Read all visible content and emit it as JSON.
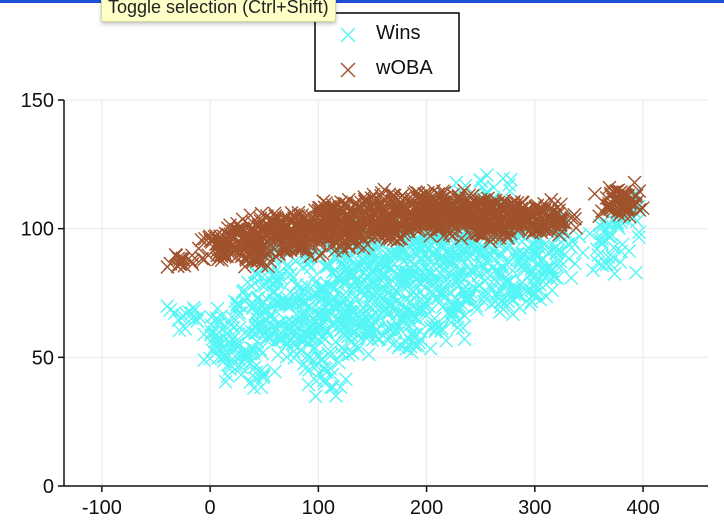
{
  "tooltip": {
    "text": "Toggle selection (Ctrl+Shift)"
  },
  "colors": {
    "wins": "#55f5f5",
    "woba": "#a0522d",
    "axis": "#111111",
    "grid": "#ebebeb",
    "accent": "#1f4fd6"
  },
  "chart_data": {
    "type": "scatter",
    "title": "",
    "xlabel": "",
    "ylabel": "",
    "xlim": [
      -135,
      460
    ],
    "ylim": [
      0,
      150
    ],
    "xticks": [
      -100,
      0,
      100,
      200,
      300,
      400
    ],
    "yticks": [
      0,
      50,
      100,
      150
    ],
    "grid": true,
    "legend": "top-center",
    "series": [
      {
        "name": "Wins",
        "marker": "x",
        "color": "#55f5f5",
        "points": [
          [
            -25,
            66
          ],
          [
            5,
            58
          ],
          [
            8,
            50
          ],
          [
            20,
            63
          ],
          [
            25,
            55
          ],
          [
            28,
            70
          ],
          [
            35,
            52
          ],
          [
            42,
            44
          ],
          [
            45,
            60
          ],
          [
            48,
            78
          ],
          [
            55,
            66
          ],
          [
            60,
            85
          ],
          [
            65,
            57
          ],
          [
            70,
            72
          ],
          [
            75,
            80
          ],
          [
            78,
            55
          ],
          [
            85,
            63
          ],
          [
            88,
            90
          ],
          [
            92,
            70
          ],
          [
            96,
            58
          ],
          [
            100,
            50
          ],
          [
            104,
            76
          ],
          [
            106,
            40
          ],
          [
            110,
            68
          ],
          [
            115,
            84
          ],
          [
            118,
            62
          ],
          [
            122,
            92
          ],
          [
            125,
            73
          ],
          [
            130,
            56
          ],
          [
            135,
            80
          ],
          [
            138,
            66
          ],
          [
            142,
            88
          ],
          [
            145,
            60
          ],
          [
            150,
            75
          ],
          [
            155,
            95
          ],
          [
            158,
            69
          ],
          [
            162,
            82
          ],
          [
            165,
            58
          ],
          [
            170,
            90
          ],
          [
            175,
            71
          ],
          [
            178,
            64
          ],
          [
            182,
            86
          ],
          [
            186,
            56
          ],
          [
            190,
            78
          ],
          [
            195,
            93
          ],
          [
            198,
            70
          ],
          [
            202,
            84
          ],
          [
            206,
            62
          ],
          [
            210,
            96
          ],
          [
            214,
            75
          ],
          [
            218,
            88
          ],
          [
            222,
            66
          ],
          [
            226,
            108
          ],
          [
            230,
            80
          ],
          [
            234,
            92
          ],
          [
            238,
            72
          ],
          [
            242,
            100
          ],
          [
            246,
            84
          ],
          [
            250,
            110
          ],
          [
            254,
            76
          ],
          [
            258,
            95
          ],
          [
            262,
            116
          ],
          [
            266,
            82
          ],
          [
            270,
            90
          ],
          [
            275,
            72
          ],
          [
            280,
            100
          ],
          [
            285,
            74
          ],
          [
            290,
            86
          ],
          [
            295,
            92
          ],
          [
            300,
            78
          ],
          [
            305,
            96
          ],
          [
            310,
            84
          ],
          [
            318,
            102
          ],
          [
            325,
            91
          ],
          [
            370,
            98
          ],
          [
            372,
            89
          ],
          [
            380,
            104
          ],
          [
            385,
            108
          ],
          [
            60,
            95
          ],
          [
            140,
            102
          ],
          [
            180,
            99
          ],
          [
            120,
            68
          ],
          [
            95,
            74
          ],
          [
            165,
            79
          ],
          [
            205,
            90
          ],
          [
            235,
            97
          ],
          [
            72,
            62
          ],
          [
            130,
            61
          ],
          [
            250,
            102
          ],
          [
            150,
            88
          ]
        ]
      },
      {
        "name": "wOBA",
        "marker": "x",
        "color": "#a0522d",
        "points": [
          [
            -25,
            88
          ],
          [
            2,
            95
          ],
          [
            10,
            90
          ],
          [
            18,
            97
          ],
          [
            25,
            92
          ],
          [
            30,
            100
          ],
          [
            38,
            94
          ],
          [
            45,
            98
          ],
          [
            50,
            92
          ],
          [
            55,
            103
          ],
          [
            62,
            96
          ],
          [
            68,
            99
          ],
          [
            72,
            94
          ],
          [
            78,
            104
          ],
          [
            84,
            98
          ],
          [
            90,
            101
          ],
          [
            95,
            96
          ],
          [
            100,
            106
          ],
          [
            105,
            99
          ],
          [
            110,
            102
          ],
          [
            115,
            97
          ],
          [
            120,
            108
          ],
          [
            125,
            100
          ],
          [
            130,
            104
          ],
          [
            135,
            98
          ],
          [
            140,
            110
          ],
          [
            145,
            102
          ],
          [
            150,
            106
          ],
          [
            155,
            100
          ],
          [
            160,
            111
          ],
          [
            165,
            103
          ],
          [
            170,
            107
          ],
          [
            175,
            101
          ],
          [
            180,
            112
          ],
          [
            185,
            104
          ],
          [
            190,
            108
          ],
          [
            195,
            102
          ],
          [
            200,
            113
          ],
          [
            205,
            105
          ],
          [
            210,
            109
          ],
          [
            215,
            103
          ],
          [
            220,
            110
          ],
          [
            225,
            106
          ],
          [
            230,
            112
          ],
          [
            235,
            104
          ],
          [
            240,
            108
          ],
          [
            245,
            102
          ],
          [
            250,
            110
          ],
          [
            255,
            104
          ],
          [
            260,
            107
          ],
          [
            265,
            101
          ],
          [
            270,
            109
          ],
          [
            275,
            103
          ],
          [
            280,
            106
          ],
          [
            285,
            100
          ],
          [
            290,
            108
          ],
          [
            295,
            103
          ],
          [
            300,
            105
          ],
          [
            305,
            100
          ],
          [
            310,
            108
          ],
          [
            318,
            102
          ],
          [
            325,
            103
          ],
          [
            372,
            107
          ],
          [
            378,
            111
          ],
          [
            382,
            114
          ],
          [
            385,
            108
          ],
          [
            40,
            88
          ],
          [
            85,
            92
          ],
          [
            130,
            95
          ],
          [
            170,
            98
          ],
          [
            210,
            100
          ],
          [
            250,
            98
          ],
          [
            60,
            100
          ],
          [
            115,
            104
          ],
          [
            200,
            104
          ]
        ]
      }
    ]
  }
}
